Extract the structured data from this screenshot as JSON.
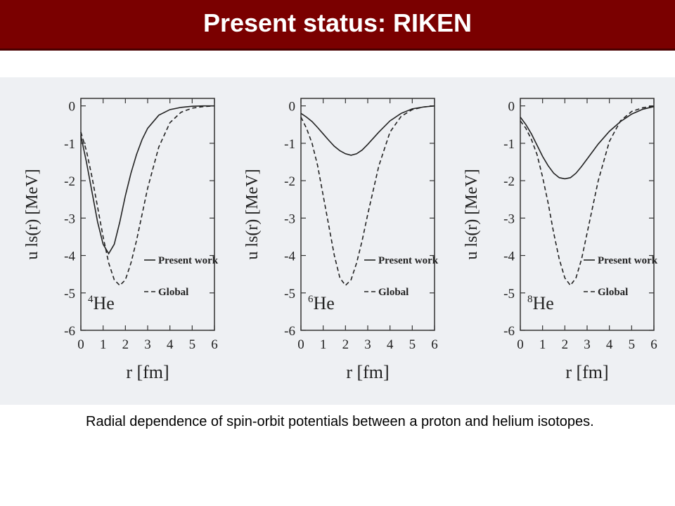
{
  "header": {
    "title": "Present status: RIKEN"
  },
  "caption": "Radial dependence of spin-orbit potentials between a proton and helium isotopes.",
  "chart_data": [
    {
      "type": "line",
      "x_label": "r [fm]",
      "y_label": "u ls(r) [MeV]",
      "annotation": {
        "mass": "4",
        "symbol": "He"
      },
      "legend": "lower right",
      "xlim": [
        0,
        6
      ],
      "ylim": [
        -6,
        0.2
      ],
      "xticks": [
        0,
        1,
        2,
        3,
        4,
        5,
        6
      ],
      "yticks": [
        0,
        -1,
        -2,
        -3,
        -4,
        -5,
        -6
      ],
      "x": [
        0,
        0.25,
        0.5,
        0.75,
        1,
        1.25,
        1.5,
        1.75,
        2,
        2.25,
        2.5,
        2.75,
        3,
        3.5,
        4,
        4.5,
        5,
        5.5,
        6
      ],
      "series": [
        {
          "name": "Present work",
          "color": "#222222",
          "line_style": "solid",
          "values": [
            -0.8,
            -1.5,
            -2.3,
            -3.1,
            -3.7,
            -3.95,
            -3.7,
            -3.1,
            -2.4,
            -1.8,
            -1.3,
            -0.9,
            -0.6,
            -0.25,
            -0.1,
            -0.04,
            -0.01,
            0,
            0
          ]
        },
        {
          "name": "Global",
          "color": "#222222",
          "line_style": "dashed",
          "values": [
            -0.7,
            -1.2,
            -1.9,
            -2.7,
            -3.5,
            -4.2,
            -4.65,
            -4.8,
            -4.65,
            -4.2,
            -3.6,
            -2.9,
            -2.2,
            -1.1,
            -0.45,
            -0.17,
            -0.06,
            -0.02,
            0
          ]
        }
      ]
    },
    {
      "type": "line",
      "x_label": "r [fm]",
      "y_label": "u ls(r) [MeV]",
      "annotation": {
        "mass": "6",
        "symbol": "He"
      },
      "legend": "lower right",
      "xlim": [
        0,
        6
      ],
      "ylim": [
        -6,
        0.2
      ],
      "xticks": [
        0,
        1,
        2,
        3,
        4,
        5,
        6
      ],
      "yticks": [
        0,
        -1,
        -2,
        -3,
        -4,
        -5,
        -6
      ],
      "x": [
        0,
        0.25,
        0.5,
        0.75,
        1,
        1.25,
        1.5,
        1.75,
        2,
        2.25,
        2.5,
        2.75,
        3,
        3.5,
        4,
        4.5,
        5,
        5.5,
        6
      ],
      "series": [
        {
          "name": "Present work",
          "color": "#222222",
          "line_style": "solid",
          "values": [
            -0.2,
            -0.3,
            -0.42,
            -0.58,
            -0.75,
            -0.92,
            -1.08,
            -1.2,
            -1.28,
            -1.32,
            -1.28,
            -1.18,
            -1.03,
            -0.7,
            -0.4,
            -0.2,
            -0.08,
            -0.03,
            0
          ]
        },
        {
          "name": "Global",
          "color": "#222222",
          "line_style": "dashed",
          "values": [
            -0.3,
            -0.6,
            -1.0,
            -1.6,
            -2.4,
            -3.2,
            -4.0,
            -4.6,
            -4.8,
            -4.65,
            -4.2,
            -3.6,
            -2.9,
            -1.6,
            -0.7,
            -0.28,
            -0.1,
            -0.03,
            0
          ]
        }
      ]
    },
    {
      "type": "line",
      "x_label": "r [fm]",
      "y_label": "u ls(r) [MeV]",
      "annotation": {
        "mass": "8",
        "symbol": "He"
      },
      "legend": "lower right",
      "xlim": [
        0,
        6
      ],
      "ylim": [
        -6,
        0.2
      ],
      "xticks": [
        0,
        1,
        2,
        3,
        4,
        5,
        6
      ],
      "yticks": [
        0,
        -1,
        -2,
        -3,
        -4,
        -5,
        -6
      ],
      "x": [
        0,
        0.25,
        0.5,
        0.75,
        1,
        1.25,
        1.5,
        1.75,
        2,
        2.25,
        2.5,
        2.75,
        3,
        3.5,
        4,
        4.5,
        5,
        5.5,
        6
      ],
      "series": [
        {
          "name": "Present work",
          "color": "#222222",
          "line_style": "solid",
          "values": [
            -0.3,
            -0.5,
            -0.75,
            -1.05,
            -1.35,
            -1.6,
            -1.8,
            -1.92,
            -1.95,
            -1.92,
            -1.8,
            -1.62,
            -1.42,
            -1.02,
            -0.68,
            -0.42,
            -0.22,
            -0.09,
            -0.02
          ]
        },
        {
          "name": "Global",
          "color": "#222222",
          "line_style": "dashed",
          "values": [
            -0.4,
            -0.6,
            -0.9,
            -1.3,
            -1.9,
            -2.6,
            -3.4,
            -4.1,
            -4.6,
            -4.8,
            -4.6,
            -4.1,
            -3.4,
            -2.0,
            -0.95,
            -0.4,
            -0.15,
            -0.05,
            0
          ]
        }
      ]
    }
  ]
}
